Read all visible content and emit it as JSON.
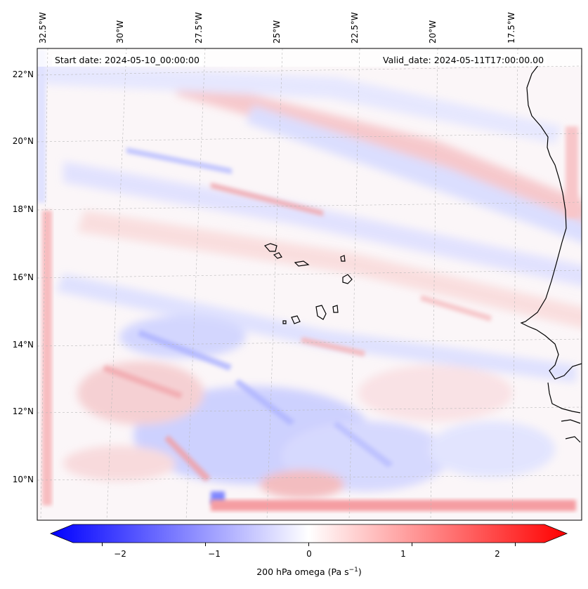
{
  "map": {
    "start_date": "Start date: 2024-05-10_00:00:00",
    "valid_date": "Valid_date: 2024-05-11T17:00:00.00",
    "lon_labels": [
      "32.5°W",
      "30°W",
      "27.5°W",
      "25°W",
      "22.5°W",
      "20°W",
      "17.5°W"
    ],
    "lat_labels": [
      "22°N",
      "20°N",
      "18°N",
      "16°N",
      "14°N",
      "12°N",
      "10°N"
    ],
    "colorbar": {
      "ticks": [
        "−2",
        "−1",
        "0",
        "1",
        "2"
      ],
      "tick_values": [
        -2,
        -1,
        0,
        1,
        2
      ],
      "range": [
        -2.5,
        2.5
      ],
      "label": "200 hPa omega (Pa s",
      "label_sup": "−1",
      "label_end": ")",
      "colors": {
        "min": "#0000ff",
        "mid": "#ffffff",
        "max": "#ff0000"
      }
    }
  }
}
